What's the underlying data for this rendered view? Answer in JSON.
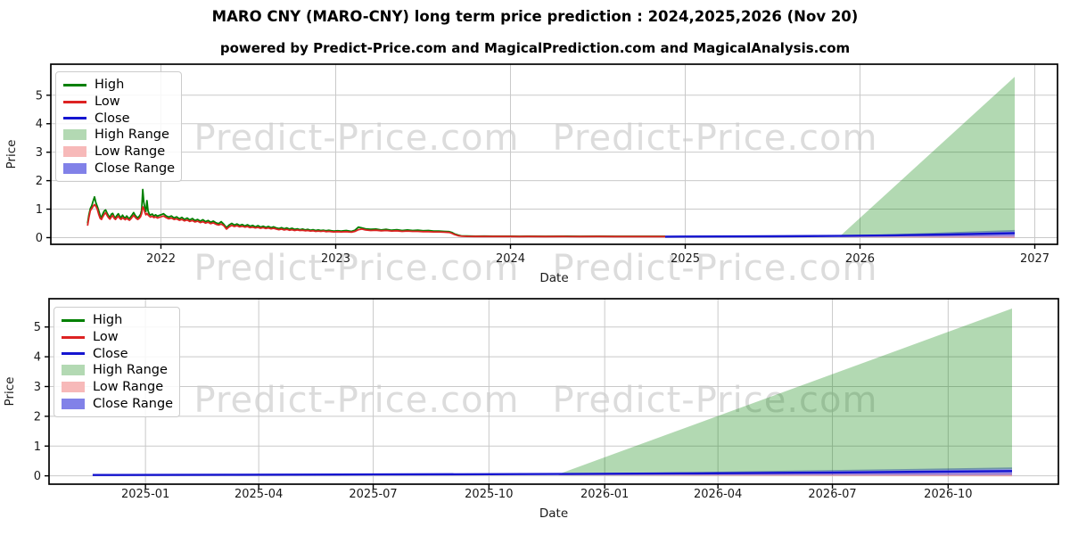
{
  "page": {
    "title": "MARO CNY (MARO-CNY) long term price prediction : 2024,2025,2026 (Nov 20)",
    "subtitle": "powered by Predict-Price.com and MagicalPrediction.com and MagicalAnalysis.com"
  },
  "watermark": {
    "text": "Predict-Price.com"
  },
  "legend": {
    "items": [
      {
        "label": "High",
        "type": "line",
        "color": "#008000"
      },
      {
        "label": "Low",
        "type": "line",
        "color": "#dd2222"
      },
      {
        "label": "Close",
        "type": "line",
        "color": "#1515d0"
      },
      {
        "label": "High Range",
        "type": "patch",
        "color": "#b3d9b3"
      },
      {
        "label": "Low Range",
        "type": "patch",
        "color": "#f7b9b9"
      },
      {
        "label": "Close Range",
        "type": "patch",
        "color": "#8181e8"
      }
    ]
  },
  "chart_data": [
    {
      "type": "line",
      "name": "long-term-history-and-prediction",
      "xlabel": "Date",
      "ylabel": "Price",
      "xlim": [
        2021.37,
        2027.13
      ],
      "ylim": [
        -0.235,
        6.09
      ],
      "grid": true,
      "legend_position": "upper-left",
      "x_ticks": [
        {
          "t": 2022,
          "label": "2022"
        },
        {
          "t": 2023,
          "label": "2023"
        },
        {
          "t": 2024,
          "label": "2024"
        },
        {
          "t": 2025,
          "label": "2025"
        },
        {
          "t": 2026,
          "label": "2026"
        },
        {
          "t": 2027,
          "label": "2027"
        }
      ],
      "y_ticks": [
        0,
        1,
        2,
        3,
        4,
        5
      ],
      "history_low_high": [
        [
          2021.58,
          0.42,
          0.5
        ],
        [
          2021.588,
          0.7,
          0.8
        ],
        [
          2021.596,
          0.95,
          1.02
        ],
        [
          2021.604,
          1.02,
          1.12
        ],
        [
          2021.612,
          1.1,
          1.28
        ],
        [
          2021.62,
          1.16,
          1.43
        ],
        [
          2021.628,
          1.1,
          1.22
        ],
        [
          2021.636,
          1.0,
          1.1
        ],
        [
          2021.644,
          0.82,
          0.95
        ],
        [
          2021.652,
          0.68,
          0.78
        ],
        [
          2021.66,
          0.64,
          0.7
        ],
        [
          2021.668,
          0.74,
          0.84
        ],
        [
          2021.676,
          0.82,
          0.94
        ],
        [
          2021.684,
          0.88,
          0.97
        ],
        [
          2021.692,
          0.78,
          0.86
        ],
        [
          2021.7,
          0.7,
          0.77
        ],
        [
          2021.708,
          0.65,
          0.71
        ],
        [
          2021.716,
          0.72,
          0.82
        ],
        [
          2021.724,
          0.78,
          0.85
        ],
        [
          2021.732,
          0.68,
          0.74
        ],
        [
          2021.74,
          0.64,
          0.7
        ],
        [
          2021.748,
          0.7,
          0.78
        ],
        [
          2021.756,
          0.75,
          0.84
        ],
        [
          2021.764,
          0.68,
          0.75
        ],
        [
          2021.772,
          0.64,
          0.7
        ],
        [
          2021.78,
          0.7,
          0.79
        ],
        [
          2021.788,
          0.66,
          0.72
        ],
        [
          2021.796,
          0.63,
          0.69
        ],
        [
          2021.804,
          0.68,
          0.76
        ],
        [
          2021.812,
          0.64,
          0.7
        ],
        [
          2021.82,
          0.61,
          0.67
        ],
        [
          2021.828,
          0.66,
          0.74
        ],
        [
          2021.836,
          0.72,
          0.8
        ],
        [
          2021.844,
          0.78,
          0.88
        ],
        [
          2021.852,
          0.72,
          0.79
        ],
        [
          2021.86,
          0.67,
          0.73
        ],
        [
          2021.868,
          0.64,
          0.7
        ],
        [
          2021.876,
          0.68,
          0.75
        ],
        [
          2021.884,
          0.74,
          0.82
        ],
        [
          2021.89,
          0.85,
          0.98
        ],
        [
          2021.896,
          1.08,
          1.69
        ],
        [
          2021.902,
          1.02,
          1.25
        ],
        [
          2021.908,
          0.88,
          1.02
        ],
        [
          2021.914,
          0.8,
          0.92
        ],
        [
          2021.92,
          0.85,
          1.3
        ],
        [
          2021.926,
          0.8,
          0.95
        ],
        [
          2021.932,
          0.76,
          0.84
        ],
        [
          2021.94,
          0.72,
          0.79
        ],
        [
          2021.95,
          0.75,
          0.83
        ],
        [
          2021.96,
          0.7,
          0.76
        ],
        [
          2021.97,
          0.73,
          0.8
        ],
        [
          2021.98,
          0.69,
          0.75
        ],
        [
          2021.99,
          0.71,
          0.78
        ],
        [
          2022.0,
          0.73,
          0.8
        ],
        [
          2022.015,
          0.76,
          0.84
        ],
        [
          2022.03,
          0.7,
          0.76
        ],
        [
          2022.045,
          0.66,
          0.72
        ],
        [
          2022.06,
          0.69,
          0.76
        ],
        [
          2022.075,
          0.64,
          0.69
        ],
        [
          2022.09,
          0.66,
          0.73
        ],
        [
          2022.105,
          0.61,
          0.66
        ],
        [
          2022.12,
          0.64,
          0.71
        ],
        [
          2022.135,
          0.59,
          0.64
        ],
        [
          2022.15,
          0.62,
          0.69
        ],
        [
          2022.165,
          0.57,
          0.62
        ],
        [
          2022.18,
          0.6,
          0.67
        ],
        [
          2022.195,
          0.55,
          0.6
        ],
        [
          2022.21,
          0.58,
          0.64
        ],
        [
          2022.225,
          0.53,
          0.58
        ],
        [
          2022.24,
          0.56,
          0.63
        ],
        [
          2022.255,
          0.51,
          0.56
        ],
        [
          2022.27,
          0.54,
          0.6
        ],
        [
          2022.285,
          0.49,
          0.54
        ],
        [
          2022.3,
          0.52,
          0.58
        ],
        [
          2022.315,
          0.47,
          0.52
        ],
        [
          2022.33,
          0.44,
          0.49
        ],
        [
          2022.345,
          0.48,
          0.56
        ],
        [
          2022.36,
          0.42,
          0.47
        ],
        [
          2022.375,
          0.3,
          0.35
        ],
        [
          2022.39,
          0.38,
          0.44
        ],
        [
          2022.405,
          0.43,
          0.5
        ],
        [
          2022.42,
          0.39,
          0.44
        ],
        [
          2022.435,
          0.42,
          0.48
        ],
        [
          2022.45,
          0.38,
          0.43
        ],
        [
          2022.465,
          0.4,
          0.46
        ],
        [
          2022.48,
          0.37,
          0.41
        ],
        [
          2022.495,
          0.39,
          0.45
        ],
        [
          2022.51,
          0.35,
          0.4
        ],
        [
          2022.525,
          0.37,
          0.43
        ],
        [
          2022.54,
          0.34,
          0.38
        ],
        [
          2022.555,
          0.36,
          0.42
        ],
        [
          2022.57,
          0.33,
          0.37
        ],
        [
          2022.585,
          0.35,
          0.4
        ],
        [
          2022.6,
          0.32,
          0.36
        ],
        [
          2022.615,
          0.34,
          0.39
        ],
        [
          2022.63,
          0.31,
          0.35
        ],
        [
          2022.645,
          0.33,
          0.38
        ],
        [
          2022.66,
          0.3,
          0.34
        ],
        [
          2022.675,
          0.28,
          0.32
        ],
        [
          2022.69,
          0.3,
          0.35
        ],
        [
          2022.705,
          0.27,
          0.31
        ],
        [
          2022.72,
          0.29,
          0.34
        ],
        [
          2022.735,
          0.26,
          0.3
        ],
        [
          2022.75,
          0.28,
          0.33
        ],
        [
          2022.765,
          0.25,
          0.29
        ],
        [
          2022.78,
          0.27,
          0.31
        ],
        [
          2022.795,
          0.25,
          0.28
        ],
        [
          2022.81,
          0.26,
          0.3
        ],
        [
          2022.825,
          0.24,
          0.27
        ],
        [
          2022.84,
          0.25,
          0.29
        ],
        [
          2022.855,
          0.23,
          0.26
        ],
        [
          2022.87,
          0.24,
          0.28
        ],
        [
          2022.885,
          0.22,
          0.25
        ],
        [
          2022.9,
          0.23,
          0.27
        ],
        [
          2022.915,
          0.22,
          0.25
        ],
        [
          2022.93,
          0.23,
          0.26
        ],
        [
          2022.945,
          0.21,
          0.24
        ],
        [
          2022.96,
          0.22,
          0.26
        ],
        [
          2022.975,
          0.21,
          0.24
        ],
        [
          2022.99,
          0.2,
          0.23
        ],
        [
          2023.01,
          0.21,
          0.24
        ],
        [
          2023.03,
          0.2,
          0.23
        ],
        [
          2023.06,
          0.21,
          0.25
        ],
        [
          2023.09,
          0.19,
          0.22
        ],
        [
          2023.11,
          0.22,
          0.26
        ],
        [
          2023.13,
          0.28,
          0.37
        ],
        [
          2023.15,
          0.3,
          0.34
        ],
        [
          2023.17,
          0.27,
          0.31
        ],
        [
          2023.2,
          0.25,
          0.29
        ],
        [
          2023.23,
          0.26,
          0.3
        ],
        [
          2023.26,
          0.24,
          0.27
        ],
        [
          2023.29,
          0.25,
          0.29
        ],
        [
          2023.32,
          0.23,
          0.26
        ],
        [
          2023.35,
          0.24,
          0.28
        ],
        [
          2023.38,
          0.22,
          0.25
        ],
        [
          2023.41,
          0.23,
          0.27
        ],
        [
          2023.44,
          0.22,
          0.25
        ],
        [
          2023.47,
          0.22,
          0.26
        ],
        [
          2023.5,
          0.21,
          0.24
        ],
        [
          2023.53,
          0.21,
          0.25
        ],
        [
          2023.56,
          0.2,
          0.23
        ],
        [
          2023.59,
          0.2,
          0.23
        ],
        [
          2023.62,
          0.19,
          0.22
        ],
        [
          2023.65,
          0.18,
          0.21
        ],
        [
          2023.665,
          0.15,
          0.18
        ],
        [
          2023.68,
          0.11,
          0.13
        ],
        [
          2023.7,
          0.07,
          0.09
        ],
        [
          2023.72,
          0.05,
          0.06
        ],
        [
          2023.75,
          0.045,
          0.055
        ],
        [
          2023.8,
          0.04,
          0.05
        ],
        [
          2023.85,
          0.042,
          0.052
        ],
        [
          2023.9,
          0.04,
          0.05
        ],
        [
          2023.95,
          0.04,
          0.05
        ],
        [
          2024.0,
          0.04,
          0.05
        ],
        [
          2024.05,
          0.038,
          0.048
        ],
        [
          2024.1,
          0.04,
          0.05
        ],
        [
          2024.2,
          0.038,
          0.048
        ],
        [
          2024.3,
          0.04,
          0.05
        ],
        [
          2024.4,
          0.037,
          0.047
        ],
        [
          2024.5,
          0.039,
          0.049
        ],
        [
          2024.6,
          0.037,
          0.047
        ],
        [
          2024.7,
          0.038,
          0.048
        ],
        [
          2024.8,
          0.036,
          0.046
        ],
        [
          2024.885,
          0.036,
          0.046
        ]
      ],
      "close_prediction": [
        [
          2024.885,
          0.035
        ],
        [
          2025.2,
          0.04
        ],
        [
          2025.5,
          0.047
        ],
        [
          2025.885,
          0.058
        ],
        [
          2026.2,
          0.08
        ],
        [
          2026.5,
          0.11
        ],
        [
          2026.885,
          0.155
        ]
      ],
      "bands": {
        "low_range": [
          [
            2025.885,
            0.04
          ],
          [
            2026.885,
            0.09
          ],
          [
            2026.885,
            -0.02
          ],
          [
            2025.885,
            0.02
          ]
        ],
        "close_range": [
          [
            2025.885,
            0.06
          ],
          [
            2026.885,
            0.27
          ],
          [
            2026.885,
            0.03
          ],
          [
            2025.885,
            0.028
          ]
        ],
        "high_range": [
          [
            2025.885,
            0.05
          ],
          [
            2026.885,
            5.65
          ],
          [
            2026.885,
            0.21
          ]
        ]
      }
    },
    {
      "type": "line",
      "name": "prediction-window-detail",
      "xlabel": "Date",
      "ylabel": "Price",
      "xlim": [
        2024.79,
        2026.988
      ],
      "ylim": [
        -0.28,
        5.95
      ],
      "grid": true,
      "legend_position": "upper-left",
      "x_ticks": [
        {
          "t": 2025.0,
          "label": "2025-01"
        },
        {
          "t": 2025.2466,
          "label": "2025-04"
        },
        {
          "t": 2025.4959,
          "label": "2025-07"
        },
        {
          "t": 2025.7479,
          "label": "2025-10"
        },
        {
          "t": 2026.0,
          "label": "2026-01"
        },
        {
          "t": 2026.2466,
          "label": "2026-04"
        },
        {
          "t": 2026.4959,
          "label": "2026-07"
        },
        {
          "t": 2026.7479,
          "label": "2026-10"
        }
      ],
      "y_ticks": [
        0,
        1,
        2,
        3,
        4,
        5
      ],
      "history_low_high": [],
      "close_prediction": [
        [
          2024.885,
          0.03
        ],
        [
          2025.2,
          0.037
        ],
        [
          2025.5,
          0.046
        ],
        [
          2025.9,
          0.06
        ],
        [
          2026.2,
          0.082
        ],
        [
          2026.5,
          0.112
        ],
        [
          2026.887,
          0.16
        ]
      ],
      "bands": {
        "low_range": [
          [
            2025.9,
            0.045
          ],
          [
            2026.887,
            0.095
          ],
          [
            2026.887,
            -0.02
          ],
          [
            2025.9,
            0.02
          ]
        ],
        "close_range": [
          [
            2025.9,
            0.065
          ],
          [
            2026.887,
            0.28
          ],
          [
            2026.887,
            0.03
          ],
          [
            2025.9,
            0.03
          ]
        ],
        "high_range": [
          [
            2025.9,
            0.06
          ],
          [
            2026.887,
            5.62
          ],
          [
            2026.887,
            0.22
          ]
        ]
      }
    }
  ]
}
